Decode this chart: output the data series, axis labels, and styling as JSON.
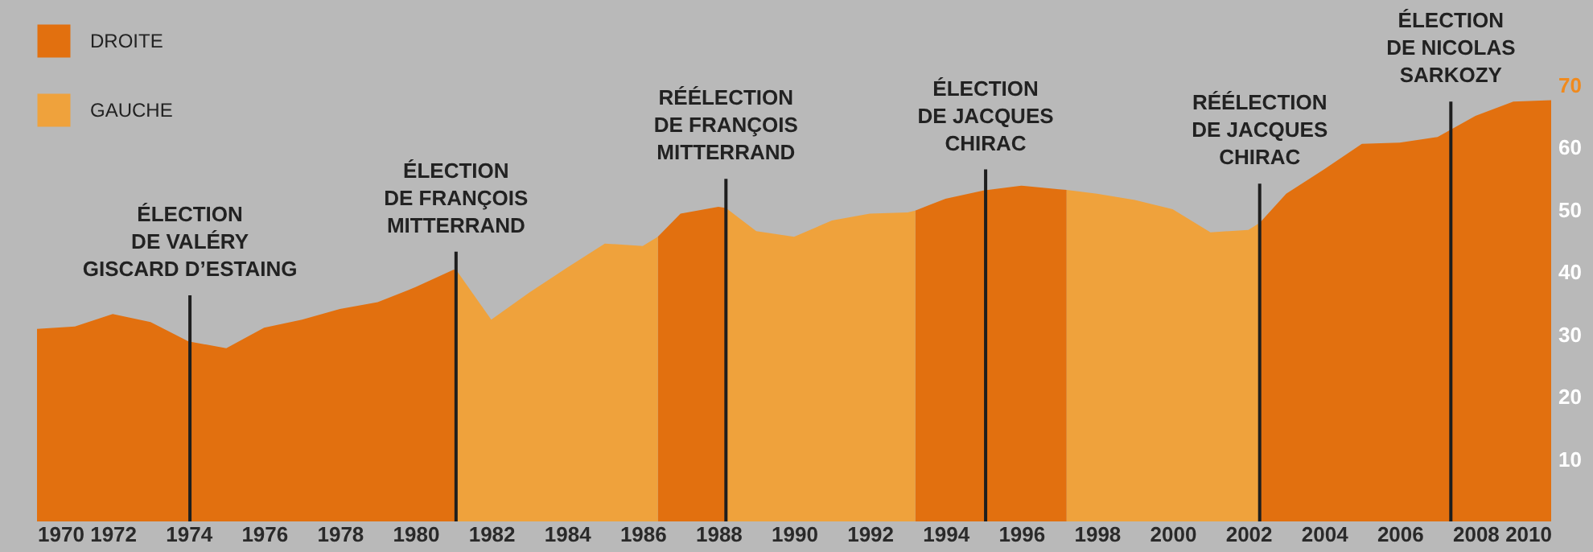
{
  "chart_data": {
    "type": "area",
    "xlim": [
      1970,
      2010
    ],
    "xticks": [
      1970,
      1972,
      1974,
      1976,
      1978,
      1980,
      1982,
      1984,
      1986,
      1988,
      1990,
      1992,
      1994,
      1996,
      1998,
      2000,
      2002,
      2004,
      2006,
      2008,
      2010
    ],
    "ylim": [
      0,
      70
    ],
    "yticks": [
      10,
      20,
      30,
      40,
      50,
      60,
      70
    ],
    "grid": false,
    "legend": "top left",
    "series": [
      {
        "name": "DROITE",
        "color": "#e2700f",
        "x": [
          1970,
          1971,
          1972,
          1973,
          1974,
          1975,
          1976,
          1977,
          1978,
          1979,
          1980,
          1981,
          1981.07,
          1984,
          1986.4,
          1987,
          1988,
          1988.2,
          1991,
          1993.2,
          1994,
          1995,
          1996,
          1997,
          1997.2,
          2000,
          2002.3,
          2003,
          2004,
          2005,
          2006,
          2007,
          2008,
          2009,
          2010
        ],
        "values": [
          30.9,
          31.3,
          33.3,
          32.0,
          28.9,
          27.8,
          31.1,
          32.4,
          34.1,
          35.2,
          37.6,
          40.4,
          40.4,
          null,
          45.7,
          49.4,
          50.5,
          50.3,
          null,
          49.9,
          51.8,
          53.1,
          53.9,
          53.3,
          53.2,
          null,
          47.9,
          52.6,
          56.5,
          60.6,
          60.8,
          61.7,
          65.1,
          67.4,
          67.6
        ]
      },
      {
        "name": "GAUCHE",
        "color": "#efa23c",
        "x": [
          1981.07,
          1982,
          1983,
          1984,
          1985,
          1986,
          1986.4,
          1987,
          1988.2,
          1989,
          1990,
          1991,
          1992,
          1993,
          1993.2,
          1995,
          1997.2,
          1998,
          1999,
          2000,
          2001,
          2002,
          2002.3
        ],
        "values": [
          40.4,
          32.4,
          36.7,
          40.7,
          44.6,
          44.2,
          45.7,
          null,
          50.3,
          46.6,
          45.7,
          48.3,
          49.4,
          49.6,
          49.9,
          null,
          53.2,
          52.6,
          51.6,
          50.1,
          46.4,
          46.8,
          47.9
        ]
      }
    ],
    "ref_lines": [
      {
        "axis": "x",
        "value": 1974.04,
        "color": "#1e1e1e"
      },
      {
        "axis": "x",
        "value": 1981.07,
        "color": "#1e1e1e"
      },
      {
        "axis": "x",
        "value": 1988.2,
        "color": "#1e1e1e"
      },
      {
        "axis": "x",
        "value": 1995.06,
        "color": "#1e1e1e"
      },
      {
        "axis": "x",
        "value": 2002.3,
        "color": "#1e1e1e"
      },
      {
        "axis": "x",
        "value": 2007.35,
        "color": "#1e1e1e"
      }
    ],
    "annotations": [
      {
        "text": "ÉLECTION\nDE VALÉRY\nGISCARD D’ESTAING",
        "x": 1974.04,
        "y": 36.3
      },
      {
        "text": "ÉLECTION\nDE FRANÇOIS\nMITTERRAND",
        "x": 1981.07,
        "y": 43.3
      },
      {
        "text": "RÉÉLECTION\nDE FRANÇOIS\nMITTERRAND",
        "x": 1988.2,
        "y": 55.0
      },
      {
        "text": "ÉLECTION\nDE JACQUES\nCHIRAC",
        "x": 1995.06,
        "y": 56.5
      },
      {
        "text": "RÉÉLECTION\nDE JACQUES\nCHIRAC",
        "x": 2002.3,
        "y": 54.2
      },
      {
        "text": "ÉLECTION\nDE NICOLAS\nSARKOZY",
        "x": 2007.35,
        "y": 67.4
      }
    ]
  }
}
